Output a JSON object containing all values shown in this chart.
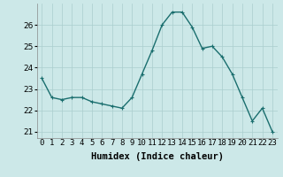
{
  "x": [
    0,
    1,
    2,
    3,
    4,
    5,
    6,
    7,
    8,
    9,
    10,
    11,
    12,
    13,
    14,
    15,
    16,
    17,
    18,
    19,
    20,
    21,
    22,
    23
  ],
  "y": [
    23.5,
    22.6,
    22.5,
    22.6,
    22.6,
    22.4,
    22.3,
    22.2,
    22.1,
    22.6,
    23.7,
    24.8,
    26.0,
    26.6,
    26.6,
    25.9,
    24.9,
    25.0,
    24.5,
    23.7,
    22.6,
    21.5,
    22.1,
    21.0
  ],
  "bg_color": "#cce8e8",
  "line_color": "#1a6e6e",
  "marker_color": "#1a6e6e",
  "grid_color": "#aacece",
  "xlabel": "Humidex (Indice chaleur)",
  "xlim": [
    -0.5,
    23.5
  ],
  "ylim": [
    20.7,
    27.0
  ],
  "yticks": [
    21,
    22,
    23,
    24,
    25,
    26
  ],
  "xtick_labels": [
    "0",
    "1",
    "2",
    "3",
    "4",
    "5",
    "6",
    "7",
    "8",
    "9",
    "10",
    "11",
    "12",
    "13",
    "14",
    "15",
    "16",
    "17",
    "18",
    "19",
    "20",
    "21",
    "22",
    "23"
  ],
  "xlabel_fontsize": 7.5,
  "tick_fontsize": 6.5,
  "line_width": 1.0,
  "marker_size": 2.5
}
